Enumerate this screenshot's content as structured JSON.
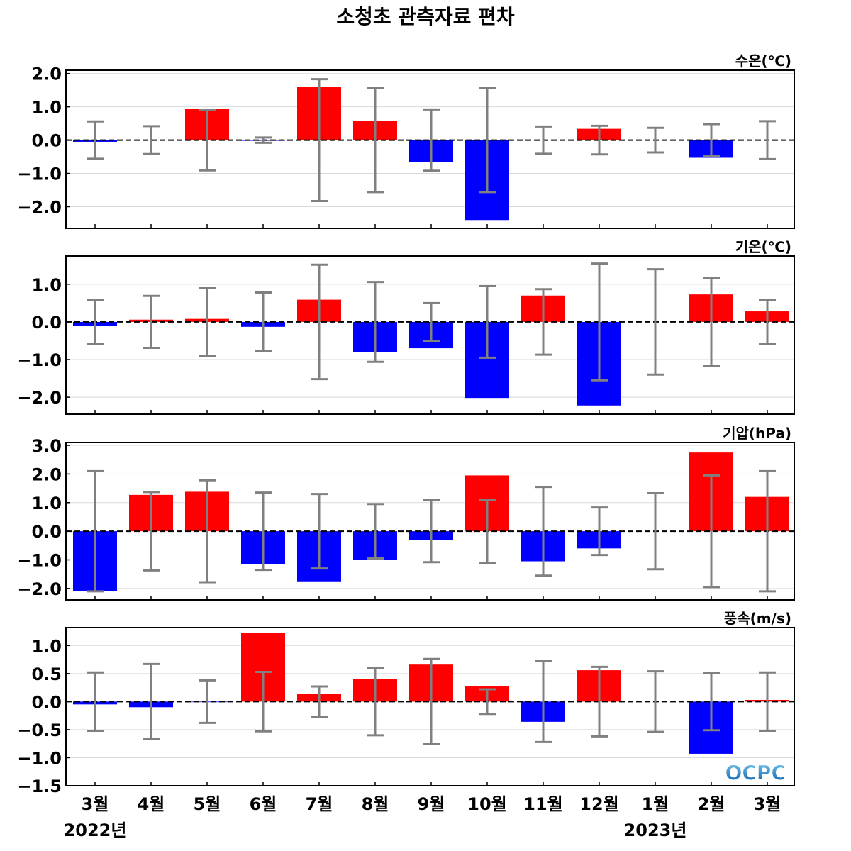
{
  "title": "소청초 관측자료 편차",
  "x_categories": [
    "3월",
    "4월",
    "5월",
    "6월",
    "7월",
    "8월",
    "9월",
    "10월",
    "11월",
    "12월",
    "1월",
    "2월",
    "3월"
  ],
  "year_labels": [
    {
      "text": "2022년",
      "index": 0
    },
    {
      "text": "2023년",
      "index": 10
    }
  ],
  "logo_text": "OCPC",
  "colors": {
    "positive": "#ff0000",
    "negative": "#0000ff",
    "error_bar": "#808080",
    "zero_line": "#000000",
    "grid": "#d9d9d9"
  },
  "chart_data": [
    {
      "type": "bar",
      "unit": "수온(℃)",
      "ylim": [
        -2.65,
        2.1
      ],
      "yticks": [
        2.0,
        1.0,
        0.0,
        -1.0,
        -2.0
      ],
      "ytick_labels": [
        "2.0",
        "1.0",
        "0.0",
        "−1.0",
        "−2.0"
      ],
      "values": [
        -0.05,
        0.01,
        0.95,
        -0.02,
        1.6,
        0.58,
        -0.65,
        -2.4,
        0.0,
        0.34,
        0.0,
        -0.53,
        0.0
      ],
      "error": [
        0.56,
        0.42,
        0.91,
        0.08,
        1.83,
        1.56,
        0.92,
        1.56,
        0.41,
        0.43,
        0.37,
        0.48,
        0.57
      ]
    },
    {
      "type": "bar",
      "unit": "기온(℃)",
      "ylim": [
        -2.45,
        1.75
      ],
      "yticks": [
        1.0,
        0.0,
        -1.0,
        -2.0
      ],
      "ytick_labels": [
        "1.0",
        "0.0",
        "−1.0",
        "−2.0"
      ],
      "values": [
        -0.1,
        0.06,
        0.08,
        -0.13,
        0.59,
        -0.8,
        -0.7,
        -2.02,
        0.7,
        -2.22,
        0.0,
        0.73,
        0.28
      ],
      "error": [
        0.58,
        0.69,
        0.91,
        0.78,
        1.52,
        1.06,
        0.5,
        0.95,
        0.87,
        1.55,
        1.4,
        1.16,
        0.58
      ]
    },
    {
      "type": "bar",
      "unit": "기압(hPa)",
      "ylim": [
        -2.4,
        3.1
      ],
      "yticks": [
        3.0,
        2.0,
        1.0,
        0.0,
        -1.0,
        -2.0
      ],
      "ytick_labels": [
        "3.0",
        "2.0",
        "1.0",
        "0.0",
        "−1.0",
        "−2.0"
      ],
      "values": [
        -2.1,
        1.27,
        1.38,
        -1.15,
        -1.75,
        -1.0,
        -0.3,
        1.95,
        -1.05,
        -0.6,
        0.0,
        2.75,
        1.2
      ],
      "error": [
        2.1,
        1.37,
        1.78,
        1.35,
        1.3,
        0.95,
        1.08,
        1.1,
        1.55,
        0.83,
        1.33,
        1.95,
        2.1
      ]
    },
    {
      "type": "bar",
      "unit": "풍속(m/s)",
      "ylim": [
        -1.5,
        1.32
      ],
      "yticks": [
        1.0,
        0.5,
        0.0,
        -0.5,
        -1.0,
        -1.5
      ],
      "ytick_labels": [
        "1.0",
        "0.5",
        "0.0",
        "−0.5",
        "−1.0",
        "−1.5"
      ],
      "values": [
        -0.05,
        -0.1,
        -0.01,
        1.22,
        0.14,
        0.4,
        0.66,
        0.27,
        -0.36,
        0.56,
        0.0,
        -0.93,
        0.03
      ],
      "error": [
        0.52,
        0.67,
        0.38,
        0.53,
        0.27,
        0.6,
        0.76,
        0.22,
        0.72,
        0.62,
        0.54,
        0.51,
        0.52
      ]
    }
  ]
}
